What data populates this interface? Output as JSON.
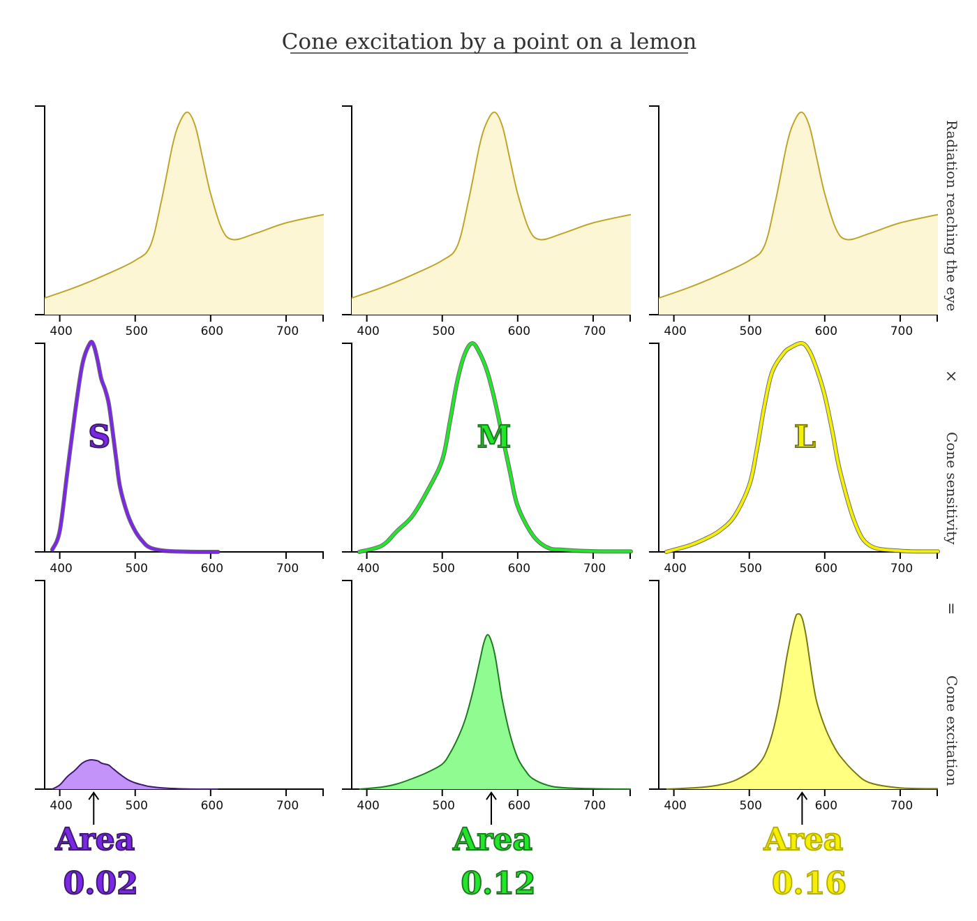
{
  "title": "Cone excitation by a point on a lemon",
  "row_labels": {
    "radiation": "Radiation reaching the eye",
    "times": "×",
    "sensitivity": "Cone sensitivity",
    "equals": "=",
    "excitation": "Cone excitation"
  },
  "colors": {
    "radiation_fill": "#fcf6d4",
    "radiation_line": "#c1a42a",
    "S": "#7a27e6",
    "S_light": "#c393fa",
    "S_dark": "#3d1a6e",
    "M": "#22e62a",
    "M_light": "#90fb90",
    "M_dark": "#1e7a20",
    "L": "#f5f000",
    "L_light": "#ffff80",
    "L_dark": "#7a7a10"
  },
  "cones": [
    {
      "letter": "S",
      "area_label": "Area",
      "area_value": "0.02",
      "peak": 445
    },
    {
      "letter": "M",
      "area_label": "Area",
      "area_value": "0.12",
      "peak": 565
    },
    {
      "letter": "L",
      "area_label": "Area",
      "area_value": "0.16",
      "peak": 570
    }
  ],
  "chart_data": {
    "type": "area",
    "xlim": [
      380,
      750
    ],
    "xticks": [
      400,
      500,
      600,
      700
    ],
    "radiation": {
      "x": [
        380,
        420,
        460,
        500,
        520,
        535,
        550,
        560,
        570,
        580,
        590,
        600,
        615,
        630,
        660,
        700,
        750
      ],
      "y": [
        0.08,
        0.13,
        0.19,
        0.26,
        0.33,
        0.55,
        0.82,
        0.93,
        0.97,
        0.9,
        0.74,
        0.58,
        0.41,
        0.36,
        0.39,
        0.44,
        0.48
      ]
    },
    "sensitivity": {
      "S": {
        "x": [
          390,
          400,
          410,
          420,
          430,
          440,
          445,
          450,
          455,
          460,
          465,
          470,
          475,
          480,
          490,
          500,
          510,
          520,
          540,
          570,
          610
        ],
        "y": [
          0.01,
          0.1,
          0.38,
          0.66,
          0.9,
          1.0,
          0.99,
          0.92,
          0.83,
          0.78,
          0.71,
          0.58,
          0.44,
          0.31,
          0.18,
          0.1,
          0.05,
          0.02,
          0.005,
          0.001,
          0.0
        ]
      },
      "M": {
        "x": [
          390,
          420,
          440,
          460,
          480,
          500,
          510,
          520,
          530,
          540,
          550,
          560,
          570,
          580,
          590,
          600,
          620,
          640,
          660,
          700,
          750
        ],
        "y": [
          0.0,
          0.03,
          0.1,
          0.17,
          0.29,
          0.44,
          0.62,
          0.82,
          0.95,
          1.0,
          0.95,
          0.86,
          0.72,
          0.55,
          0.38,
          0.22,
          0.08,
          0.02,
          0.01,
          0.003,
          0.002
        ]
      },
      "L": {
        "x": [
          390,
          420,
          440,
          460,
          480,
          500,
          510,
          520,
          530,
          545,
          555,
          570,
          580,
          590,
          600,
          610,
          620,
          640,
          660,
          700,
          750
        ],
        "y": [
          0.0,
          0.03,
          0.06,
          0.1,
          0.17,
          0.32,
          0.49,
          0.7,
          0.86,
          0.95,
          0.98,
          1.0,
          0.96,
          0.87,
          0.75,
          0.58,
          0.39,
          0.14,
          0.03,
          0.005,
          0.002
        ]
      }
    },
    "excitation": {
      "S": {
        "x": [
          390,
          400,
          410,
          420,
          430,
          440,
          450,
          455,
          460,
          465,
          470,
          480,
          490,
          500,
          510,
          520,
          540,
          570,
          610
        ],
        "y": [
          0.0,
          0.02,
          0.06,
          0.09,
          0.125,
          0.14,
          0.136,
          0.125,
          0.12,
          0.115,
          0.1,
          0.071,
          0.046,
          0.03,
          0.02,
          0.012,
          0.005,
          0.001,
          0.0
        ]
      },
      "M": {
        "x": [
          390,
          420,
          440,
          460,
          480,
          500,
          510,
          520,
          530,
          540,
          550,
          555,
          560,
          565,
          570,
          575,
          580,
          590,
          600,
          610,
          620,
          640,
          660,
          700,
          750
        ],
        "y": [
          0.0,
          0.01,
          0.025,
          0.05,
          0.08,
          0.12,
          0.17,
          0.24,
          0.33,
          0.46,
          0.62,
          0.7,
          0.74,
          0.71,
          0.64,
          0.53,
          0.42,
          0.26,
          0.15,
          0.09,
          0.05,
          0.018,
          0.007,
          0.002,
          0.0
        ]
      },
      "L": {
        "x": [
          390,
          420,
          440,
          460,
          480,
          500,
          510,
          520,
          530,
          540,
          550,
          560,
          565,
          570,
          575,
          580,
          585,
          590,
          600,
          610,
          620,
          640,
          660,
          700,
          750
        ],
        "y": [
          0.0,
          0.005,
          0.01,
          0.02,
          0.04,
          0.08,
          0.11,
          0.16,
          0.26,
          0.42,
          0.64,
          0.81,
          0.84,
          0.82,
          0.74,
          0.62,
          0.5,
          0.41,
          0.3,
          0.22,
          0.16,
          0.08,
          0.03,
          0.006,
          0.002
        ]
      }
    }
  }
}
